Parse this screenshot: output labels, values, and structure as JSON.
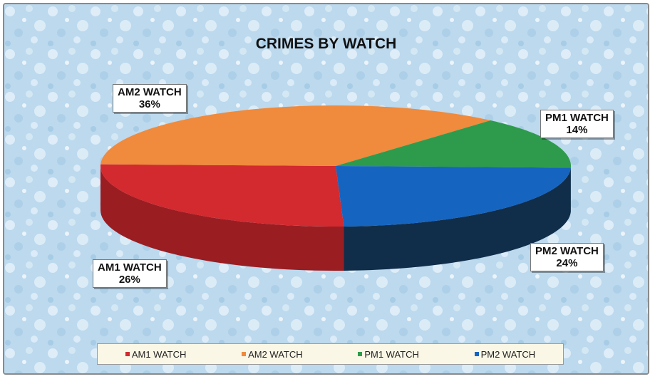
{
  "chart_data": {
    "type": "pie",
    "title": "CRIMES BY WATCH",
    "categories": [
      "AM1 WATCH",
      "AM2 WATCH",
      "PM1 WATCH",
      "PM2 WATCH"
    ],
    "values": [
      26,
      36,
      14,
      24
    ],
    "value_labels": [
      "26%",
      "36%",
      "14%",
      "24%"
    ],
    "colors": [
      "#d22a2f",
      "#f08a3c",
      "#2e9b4c",
      "#1565c0"
    ],
    "side_colors": [
      "#9a1d22",
      "#b5652a",
      "#20703a",
      "#102d4a"
    ],
    "background_color": "#bcd9ee",
    "legend_position": "bottom",
    "three_d": true
  }
}
